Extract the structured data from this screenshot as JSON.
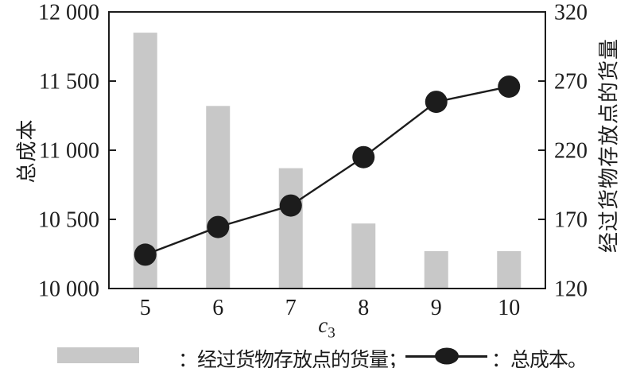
{
  "colors": {
    "ink": "#1c1c1c",
    "bar_fill": "#c8c8c8",
    "background": "#ffffff"
  },
  "chart_data": {
    "type": "bar+line",
    "title": "",
    "categories": [
      5,
      6,
      7,
      8,
      9,
      10
    ],
    "x_axis": {
      "title_main": "c",
      "title_sub": "3",
      "tick_labels": [
        "5",
        "6",
        "7",
        "8",
        "9",
        "10"
      ]
    },
    "left_axis": {
      "title": "总成本",
      "min": 10000,
      "max": 12000,
      "ticks": [
        {
          "value": 10000,
          "label": "10 000"
        },
        {
          "value": 10500,
          "label": "10 500"
        },
        {
          "value": 11000,
          "label": "11 000"
        },
        {
          "value": 11500,
          "label": "11 500"
        },
        {
          "value": 12000,
          "label": "12 000"
        }
      ]
    },
    "right_axis": {
      "title": "经过货物存放点的货量",
      "min": 120,
      "max": 320,
      "ticks": [
        {
          "value": 120,
          "label": "120"
        },
        {
          "value": 170,
          "label": "170"
        },
        {
          "value": 220,
          "label": "220"
        },
        {
          "value": 270,
          "label": "270"
        },
        {
          "value": 320,
          "label": "320"
        }
      ]
    },
    "series": [
      {
        "name": "经过货物存放点的货量",
        "type": "bar",
        "axis": "right",
        "color": "#c8c8c8",
        "values": [
          305,
          252,
          207,
          167,
          147,
          147
        ]
      },
      {
        "name": "总成本",
        "type": "line",
        "axis": "left",
        "color": "#1c1c1c",
        "marker": "filled-circle",
        "values": [
          10245,
          10445,
          10600,
          10950,
          11350,
          11460
        ]
      }
    ],
    "grid": false,
    "legend_position": "bottom"
  },
  "legend": {
    "bar_label": "：经过货物存放点的货量；",
    "line_label": "：总成本。"
  }
}
